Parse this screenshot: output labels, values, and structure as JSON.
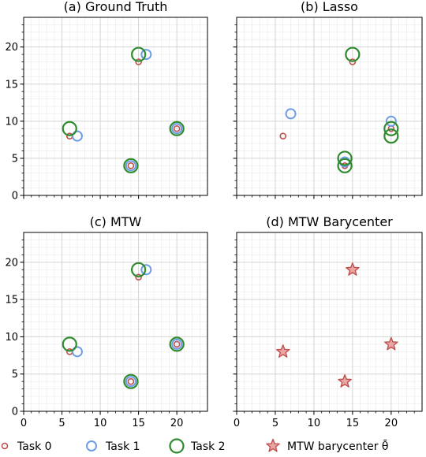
{
  "figure": {
    "x_ticks": [
      0,
      5,
      10,
      15,
      20
    ],
    "y_ticks": [
      0,
      5,
      10,
      15,
      20
    ],
    "xlim": [
      0,
      24
    ],
    "ylim": [
      0,
      24
    ],
    "grid": true,
    "minor_grid": true
  },
  "colors": {
    "task0": "#c0504d",
    "task1": "#6f9ce6",
    "task2": "#2e8b2e",
    "barycenter": "#c0504d",
    "grid": "#d3d3d3"
  },
  "legend": {
    "items": [
      {
        "label": "Task 0",
        "marker": "small-circle",
        "color": "#c0504d"
      },
      {
        "label": "Task 1",
        "marker": "medium-circle",
        "color": "#6f9ce6"
      },
      {
        "label": "Task 2",
        "marker": "large-circle",
        "color": "#2e8b2e"
      },
      {
        "label": "MTW barycenter θ̄",
        "marker": "star",
        "color": "#c0504d"
      }
    ]
  },
  "chart_data": [
    {
      "type": "scatter",
      "title": "(a) Ground Truth",
      "xlim": [
        0,
        24
      ],
      "ylim": [
        0,
        24
      ],
      "series": [
        {
          "name": "Task 0",
          "points": [
            [
              6,
              8
            ],
            [
              15,
              18
            ],
            [
              14,
              4
            ],
            [
              20,
              9
            ]
          ]
        },
        {
          "name": "Task 1",
          "points": [
            [
              7,
              8
            ],
            [
              16,
              19
            ],
            [
              14,
              4
            ],
            [
              20,
              9
            ]
          ]
        },
        {
          "name": "Task 2",
          "points": [
            [
              6,
              9
            ],
            [
              15,
              19
            ],
            [
              14,
              4
            ],
            [
              20,
              9
            ]
          ]
        }
      ]
    },
    {
      "type": "scatter",
      "title": "(b) Lasso",
      "xlim": [
        0,
        24
      ],
      "ylim": [
        0,
        24
      ],
      "series": [
        {
          "name": "Task 0",
          "points": [
            [
              6,
              8
            ],
            [
              15,
              18
            ],
            [
              14,
              4
            ],
            [
              20,
              9
            ]
          ]
        },
        {
          "name": "Task 1",
          "points": [
            [
              7,
              11
            ],
            [
              14,
              4.5
            ],
            [
              20,
              10
            ]
          ]
        },
        {
          "name": "Task 2",
          "points": [
            [
              15,
              19
            ],
            [
              14,
              5
            ],
            [
              14,
              4
            ],
            [
              20,
              9
            ],
            [
              20,
              8
            ]
          ]
        }
      ]
    },
    {
      "type": "scatter",
      "title": "(c) MTW",
      "xlim": [
        0,
        24
      ],
      "ylim": [
        0,
        24
      ],
      "series": [
        {
          "name": "Task 0",
          "points": [
            [
              6,
              8
            ],
            [
              15,
              18
            ],
            [
              14,
              4
            ],
            [
              20,
              9
            ]
          ]
        },
        {
          "name": "Task 1",
          "points": [
            [
              7,
              8
            ],
            [
              16,
              19
            ],
            [
              14,
              4
            ],
            [
              20,
              9
            ]
          ]
        },
        {
          "name": "Task 2",
          "points": [
            [
              6,
              9
            ],
            [
              15,
              19
            ],
            [
              14,
              4
            ],
            [
              20,
              9
            ]
          ]
        }
      ]
    },
    {
      "type": "scatter",
      "title": "(d) MTW Barycenter",
      "xlim": [
        0,
        24
      ],
      "ylim": [
        0,
        24
      ],
      "series": [
        {
          "name": "MTW barycenter θ̄",
          "marker": "star",
          "points": [
            [
              6,
              8
            ],
            [
              15,
              19
            ],
            [
              14,
              4
            ],
            [
              20,
              9
            ]
          ]
        }
      ]
    }
  ]
}
